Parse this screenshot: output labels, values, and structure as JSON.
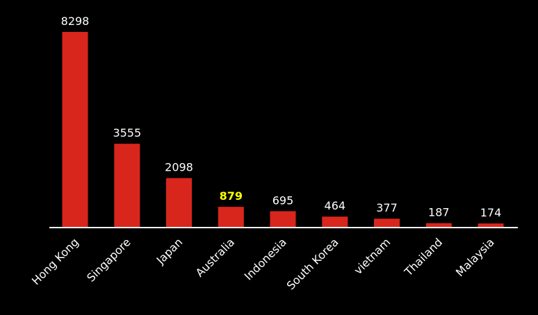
{
  "chart_data": {
    "type": "bar",
    "categories": [
      "Hong Kong",
      "Singapore",
      "Japan",
      "Australia",
      "Indonesia",
      "South Korea",
      "vietnam",
      "Thailand",
      "Malaysia"
    ],
    "values": [
      8298,
      3555,
      2098,
      879,
      695,
      464,
      377,
      187,
      174
    ],
    "highlight_category": "Australia",
    "colors": {
      "background": "#000000",
      "bar": "#d9261c",
      "axis": "#ffffff",
      "label": "#ffffff",
      "highlight_label": "#ffff00"
    },
    "grid": false,
    "legend": "none"
  }
}
